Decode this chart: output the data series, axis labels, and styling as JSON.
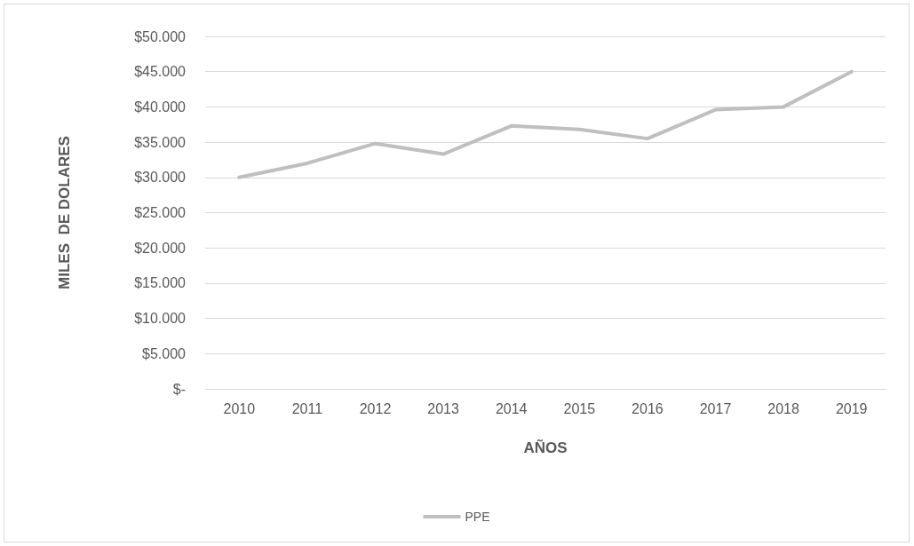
{
  "chart_data": {
    "type": "line",
    "xlabel": "AÑOS",
    "ylabel": "MILES  DE DOLARES",
    "categories": [
      "2010",
      "2011",
      "2012",
      "2013",
      "2014",
      "2015",
      "2016",
      "2017",
      "2018",
      "2019"
    ],
    "series": [
      {
        "name": "PPE",
        "color": "#bfbfbf",
        "values": [
          30000,
          32000,
          34800,
          33300,
          37300,
          36800,
          35500,
          39600,
          40000,
          45000
        ]
      }
    ],
    "ylim": [
      0,
      50000
    ],
    "yticks": [
      {
        "value": 0,
        "label": "$-"
      },
      {
        "value": 5000,
        "label": "$5.000"
      },
      {
        "value": 10000,
        "label": "$10.000"
      },
      {
        "value": 15000,
        "label": "$15.000"
      },
      {
        "value": 20000,
        "label": "$20.000"
      },
      {
        "value": 25000,
        "label": "$25.000"
      },
      {
        "value": 30000,
        "label": "$30.000"
      },
      {
        "value": 35000,
        "label": "$35.000"
      },
      {
        "value": 40000,
        "label": "$40.000"
      },
      {
        "value": 45000,
        "label": "$45.000"
      },
      {
        "value": 50000,
        "label": "$50.000"
      }
    ],
    "grid": "y",
    "legend": "bottom",
    "marker": "none",
    "line_style": "solid"
  }
}
